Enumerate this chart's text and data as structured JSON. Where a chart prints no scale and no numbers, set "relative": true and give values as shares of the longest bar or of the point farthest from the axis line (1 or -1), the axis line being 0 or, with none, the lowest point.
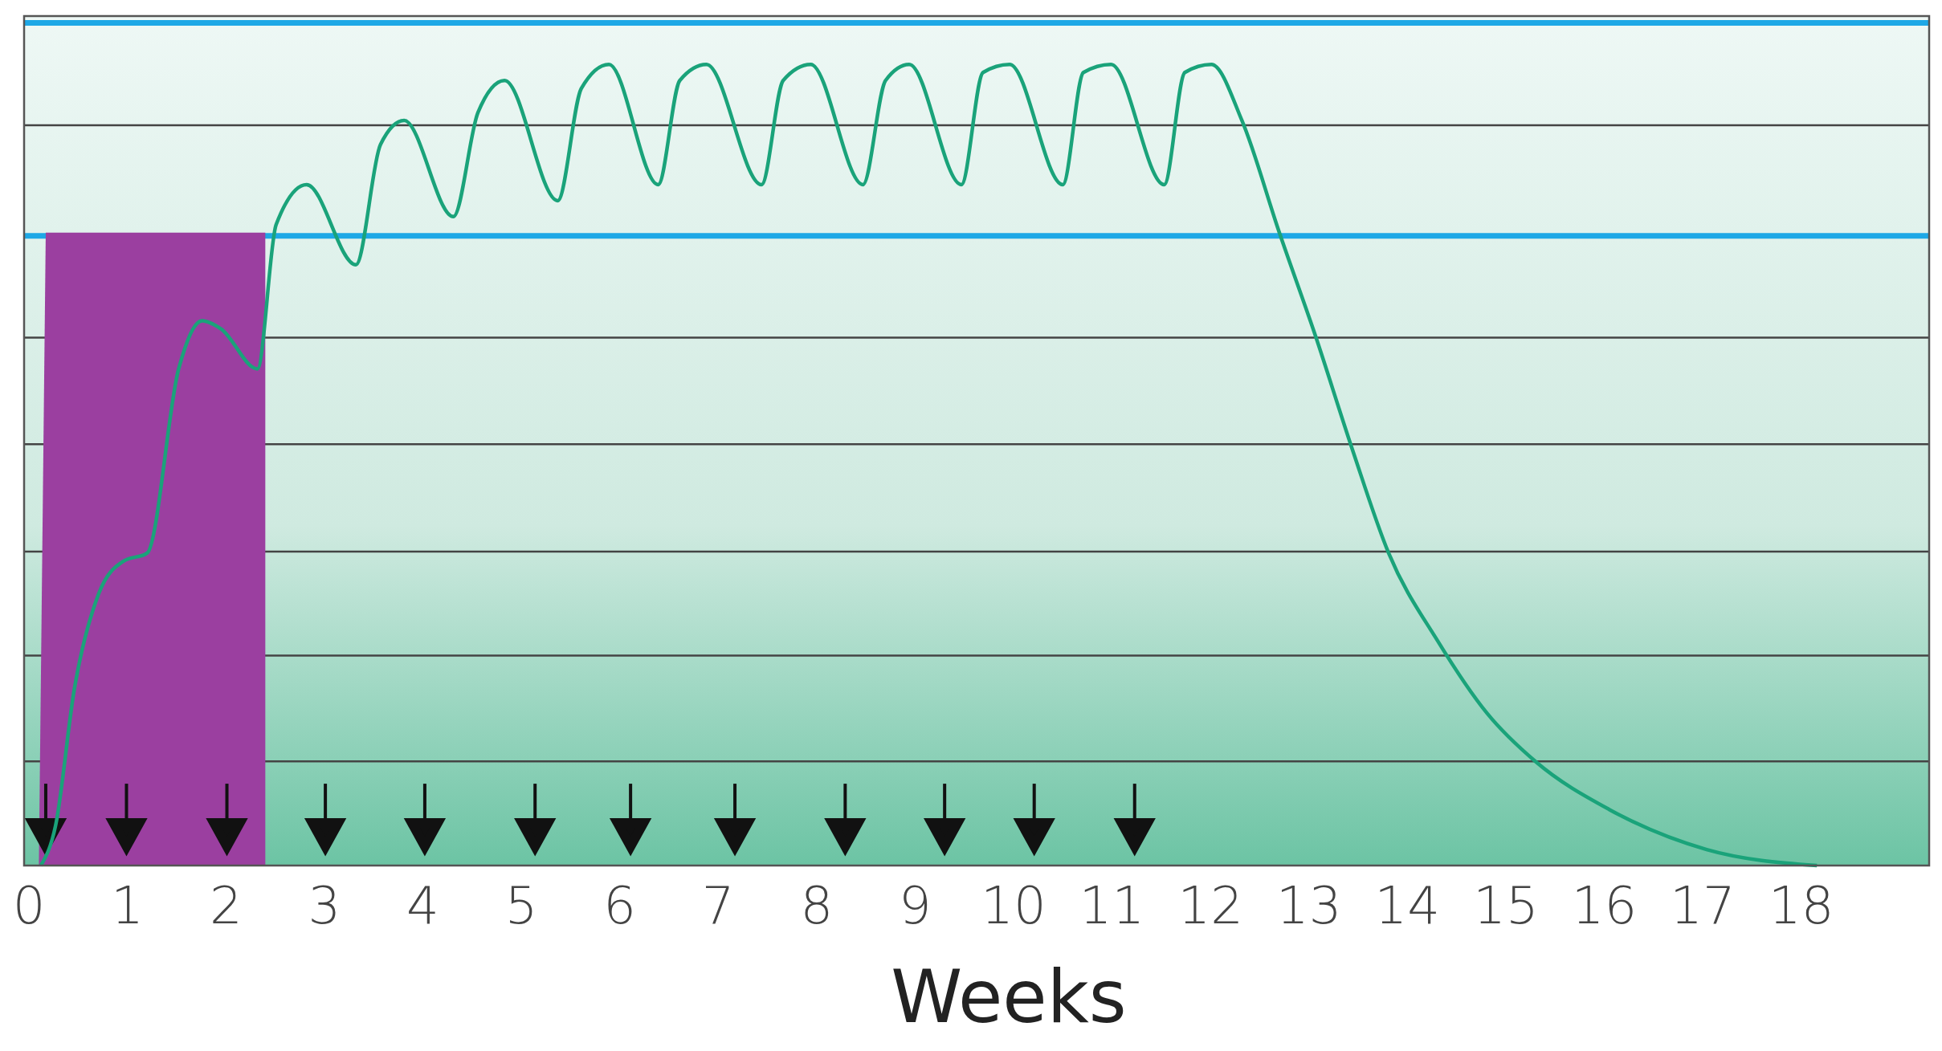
{
  "chart_data": {
    "type": "line",
    "relative": true,
    "xlabel": "Weeks",
    "xlim": [
      -0.05,
      19.3
    ],
    "xticks": [
      0,
      1,
      2,
      3,
      4,
      5,
      6,
      7,
      8,
      9,
      10,
      11,
      12,
      13,
      14,
      15,
      16,
      17,
      18
    ],
    "series": [
      {
        "type": "area",
        "color": "#9b3fa0",
        "x": [
          0.1,
          0.17,
          2.4
        ],
        "values": [
          0,
          0.79,
          0.79
        ]
      },
      {
        "type": "scatter",
        "marker": "triangle",
        "color": "#111111",
        "x": [
          0.17,
          0.99,
          2.01,
          3.01,
          4.02,
          5.14,
          6.11,
          7.17,
          8.29,
          9.3,
          10.21,
          11.23
        ],
        "values": [
          0.04,
          0.04,
          0.04,
          0.04,
          0.04,
          0.04,
          0.04,
          0.04,
          0.04,
          0.04,
          0.04,
          0.04
        ]
      },
      {
        "color": "#1aa37a",
        "x": [
          0.12,
          0.27,
          0.46,
          0.71,
          0.96,
          1.2,
          1.52,
          1.76,
          1.95,
          2.32,
          2.51,
          2.82,
          3.32,
          3.57,
          3.81,
          4.31,
          4.56,
          4.83,
          5.37,
          5.61,
          5.89,
          6.39,
          6.61,
          6.88,
          7.44,
          7.66,
          7.94,
          8.47,
          8.7,
          8.94,
          9.47,
          9.69,
          9.96,
          10.5,
          10.71,
          10.99,
          11.53,
          11.74,
          12.01,
          12.32,
          12.7,
          13.07,
          13.44,
          13.81,
          14.31,
          14.81,
          15.3,
          16.05,
          17.04,
          18.16
        ],
        "values": [
          0,
          0.05,
          0.22,
          0.34,
          0.38,
          0.39,
          0.62,
          0.68,
          0.67,
          0.62,
          0.8,
          0.85,
          0.75,
          0.9,
          0.93,
          0.81,
          0.94,
          0.98,
          0.83,
          0.97,
          1.0,
          0.85,
          0.98,
          1.0,
          0.85,
          0.98,
          1.0,
          0.85,
          0.98,
          1.0,
          0.85,
          0.99,
          1.0,
          0.85,
          0.99,
          1.0,
          0.85,
          0.99,
          1.0,
          0.93,
          0.79,
          0.66,
          0.52,
          0.39,
          0.28,
          0.19,
          0.13,
          0.07,
          0.02,
          0
        ]
      }
    ],
    "ref_lines": [
      {
        "axis": "y",
        "value": 0.13,
        "color": "#444444"
      },
      {
        "axis": "y",
        "value": 0.262,
        "color": "#444444"
      },
      {
        "axis": "y",
        "value": 0.392,
        "color": "#444444"
      },
      {
        "axis": "y",
        "value": 0.526,
        "color": "#444444"
      },
      {
        "axis": "y",
        "value": 0.659,
        "color": "#444444"
      },
      {
        "axis": "y",
        "value": 0.786,
        "color": "#1ea8e6"
      },
      {
        "axis": "y",
        "value": 0.924,
        "color": "#444444"
      },
      {
        "axis": "y",
        "value": 1.052,
        "color": "#1ea8e6"
      }
    ]
  }
}
